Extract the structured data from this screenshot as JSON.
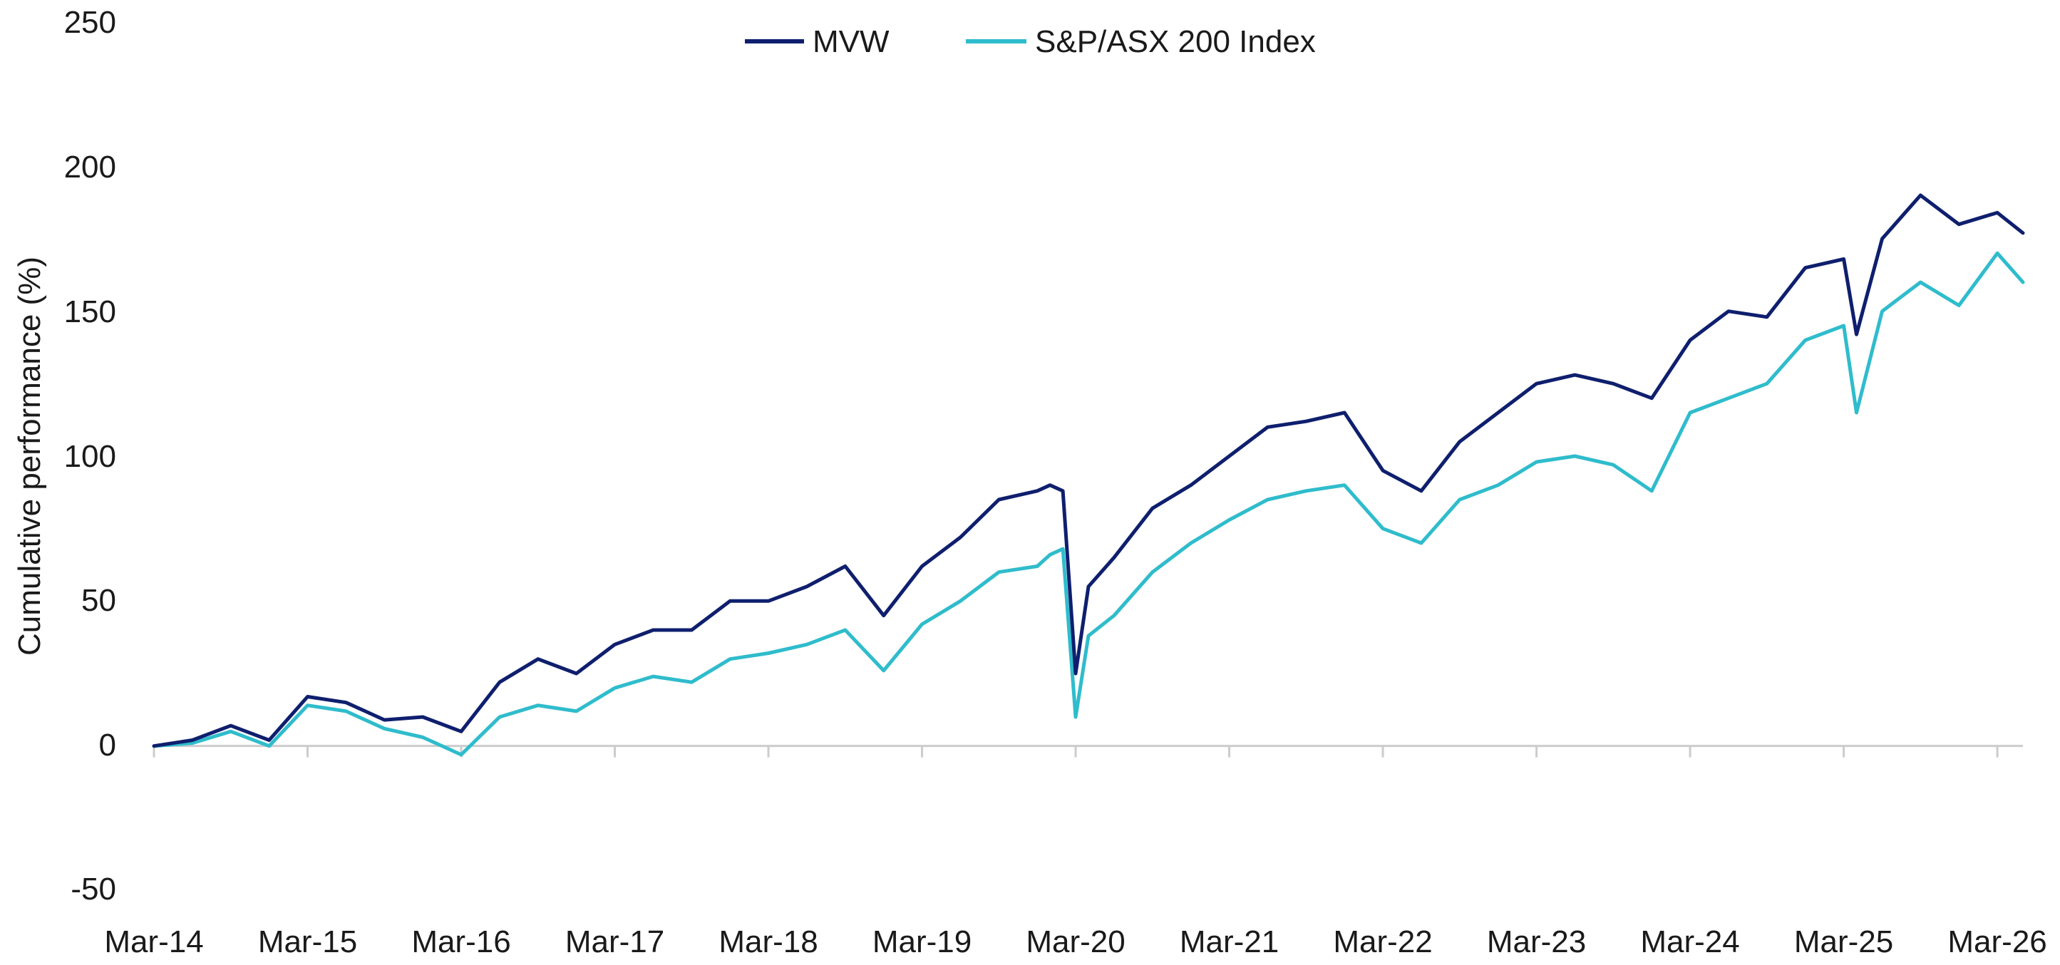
{
  "chart_data": {
    "type": "line",
    "title": "",
    "xlabel": "",
    "ylabel": "Cumulative performance (%)",
    "ylim": [
      -50,
      250
    ],
    "yticks": [
      -50,
      0,
      50,
      100,
      150,
      200,
      250
    ],
    "ytick_labels": [
      "-50",
      "0",
      "50",
      "100",
      "150",
      "200",
      "250"
    ],
    "x_tick_labels": [
      "Mar-14",
      "Mar-15",
      "Mar-16",
      "Mar-17",
      "Mar-18",
      "Mar-19",
      "Mar-20",
      "Mar-21",
      "Mar-22",
      "Mar-23",
      "Mar-24",
      "Mar-25",
      "Mar-26"
    ],
    "xlim": [
      "2014-03",
      "2026-05"
    ],
    "grid": false,
    "legend": "top-center",
    "colors": {
      "MVW": "#0f1f6e",
      "S&P/ASX 200 Index": "#2fbccc",
      "axis": "#cccccc"
    },
    "x": [
      "2014-03",
      "2014-06",
      "2014-09",
      "2014-12",
      "2015-03",
      "2015-06",
      "2015-09",
      "2015-12",
      "2016-03",
      "2016-06",
      "2016-09",
      "2016-12",
      "2017-03",
      "2017-06",
      "2017-09",
      "2017-12",
      "2018-03",
      "2018-06",
      "2018-09",
      "2018-12",
      "2019-03",
      "2019-06",
      "2019-09",
      "2019-12",
      "2020-01",
      "2020-02",
      "2020-03",
      "2020-04",
      "2020-06",
      "2020-09",
      "2020-12",
      "2021-03",
      "2021-06",
      "2021-09",
      "2021-12",
      "2022-03",
      "2022-06",
      "2022-09",
      "2022-12",
      "2023-03",
      "2023-06",
      "2023-09",
      "2023-12",
      "2024-03",
      "2024-06",
      "2024-09",
      "2024-12",
      "2025-03",
      "2025-04",
      "2025-06",
      "2025-09",
      "2025-12",
      "2026-03",
      "2026-05"
    ],
    "series": [
      {
        "name": "MVW",
        "values": [
          0,
          2,
          7,
          2,
          17,
          15,
          9,
          10,
          5,
          22,
          30,
          25,
          35,
          40,
          40,
          50,
          50,
          55,
          62,
          45,
          62,
          72,
          85,
          88,
          90,
          88,
          25,
          55,
          65,
          82,
          90,
          100,
          110,
          112,
          115,
          95,
          88,
          105,
          115,
          125,
          128,
          125,
          120,
          140,
          150,
          148,
          165,
          168,
          142,
          175,
          190,
          180,
          184,
          177
        ]
      },
      {
        "name": "S&P/ASX 200 Index",
        "values": [
          0,
          1,
          5,
          0,
          14,
          12,
          6,
          3,
          -3,
          10,
          14,
          12,
          20,
          24,
          22,
          30,
          32,
          35,
          40,
          26,
          42,
          50,
          60,
          62,
          66,
          68,
          10,
          38,
          45,
          60,
          70,
          78,
          85,
          88,
          90,
          75,
          70,
          85,
          90,
          98,
          100,
          97,
          88,
          115,
          120,
          125,
          140,
          145,
          115,
          150,
          160,
          152,
          170,
          160
        ]
      }
    ]
  }
}
